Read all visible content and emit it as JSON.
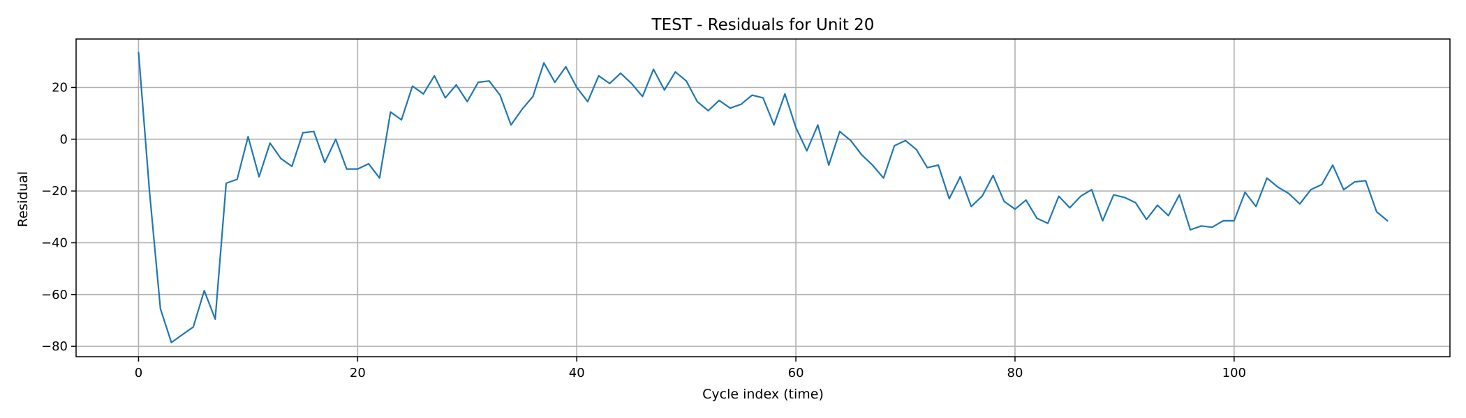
{
  "chart_data": {
    "type": "line",
    "title": "TEST - Residuals for Unit 20",
    "xlabel": "Cycle index (time)",
    "ylabel": "Residual",
    "xlim": [
      -5.7,
      119.7
    ],
    "ylim": [
      -84.0,
      38.7
    ],
    "xticks": [
      0,
      20,
      40,
      60,
      80,
      100
    ],
    "yticks": [
      20,
      0,
      -20,
      -40,
      -60,
      -80
    ],
    "xtick_labels": [
      "0",
      "20",
      "40",
      "60",
      "80",
      "100"
    ],
    "ytick_labels": [
      "20",
      "0",
      "−20",
      "−40",
      "−60",
      "−80"
    ],
    "grid": true,
    "line_color": "#1f77b4",
    "series": [
      {
        "x": [
          0,
          1,
          2,
          3,
          4,
          5,
          6,
          7,
          8,
          9,
          10,
          11,
          12,
          13,
          14,
          15,
          16,
          17,
          18,
          19,
          20,
          21,
          22,
          23,
          24,
          25,
          26,
          27,
          28,
          29,
          30,
          31,
          32,
          33,
          34,
          35,
          36,
          37,
          38,
          39,
          40,
          41,
          42,
          43,
          44,
          45,
          46,
          47,
          48,
          49,
          50,
          51,
          52,
          53,
          54,
          55,
          56,
          57,
          58,
          59,
          60,
          61,
          62,
          63,
          64,
          65,
          66,
          67,
          68,
          69,
          70,
          71,
          72,
          73,
          74,
          75,
          76,
          77,
          78,
          79,
          80,
          81,
          82,
          83,
          84,
          85,
          86,
          87,
          88,
          89,
          90,
          91,
          92,
          93,
          94,
          95,
          96,
          97,
          98,
          99,
          100,
          101,
          102,
          103,
          104,
          105,
          106,
          107,
          108,
          109,
          110,
          111,
          112,
          113,
          114
        ],
        "values": [
          33.5,
          -20,
          -65.5,
          -78.5,
          -75.5,
          -72.5,
          -58.5,
          -69.5,
          -17,
          -15.5,
          1,
          -14.5,
          -1.5,
          -7.5,
          -10.5,
          2.5,
          3,
          -9,
          0,
          -11.5,
          -11.5,
          -9.5,
          -15,
          10.5,
          7.5,
          20.5,
          17.5,
          24.5,
          16,
          21,
          14.5,
          22,
          22.5,
          17,
          5.5,
          11.5,
          16.5,
          29.5,
          22,
          28,
          20,
          14.5,
          24.5,
          21.5,
          25.5,
          21.5,
          16.5,
          27,
          19,
          26,
          22.5,
          14.5,
          11,
          15,
          12,
          13.5,
          17,
          16,
          5.5,
          17.5,
          4.5,
          -4.5,
          5.5,
          -10,
          3,
          -0.5,
          -6,
          -10,
          -15,
          -2.5,
          -0.5,
          -4,
          -11,
          -10,
          -23,
          -14.5,
          -26,
          -22,
          -14,
          -24,
          -27,
          -23.5,
          -30.5,
          -32.5,
          -22,
          -26.5,
          -22,
          -19.5,
          -31.5,
          -21.5,
          -22.5,
          -24.5,
          -31,
          -25.5,
          -29.5,
          -21.5,
          -35,
          -33.5,
          -34,
          -31.5,
          -31.5,
          -20.5,
          -26,
          -15,
          -18.5,
          -21,
          -25,
          -19.5,
          -17.5,
          -10,
          -19.5,
          -16.5,
          -16,
          -28,
          -31.5
        ]
      }
    ]
  }
}
